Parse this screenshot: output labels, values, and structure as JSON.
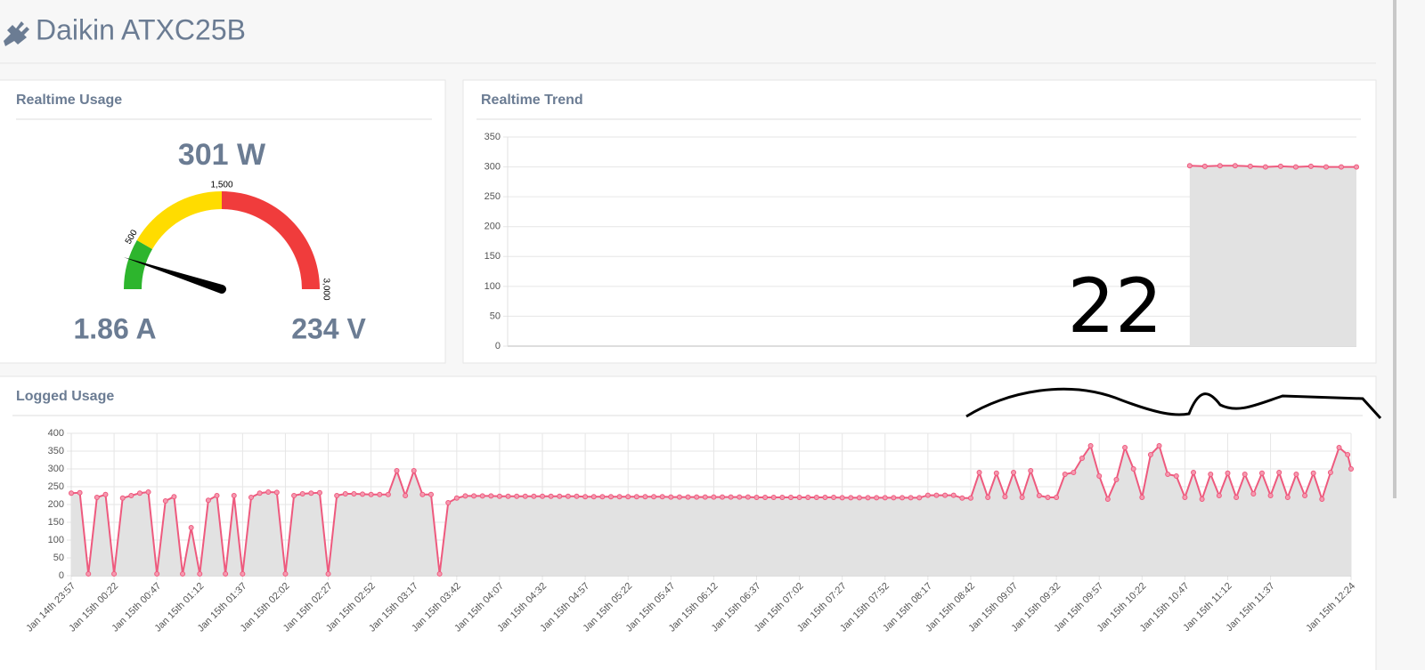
{
  "header": {
    "title": "Daikin ATXC25B"
  },
  "gauge": {
    "title": "Realtime Usage",
    "value": 301,
    "value_label": "301 W",
    "range": [
      0,
      3000
    ],
    "bands": [
      {
        "to": 500,
        "color": "#2db52d"
      },
      {
        "to": 1500,
        "color": "#ffdc00"
      },
      {
        "to": 3000,
        "color": "#f03c3c"
      }
    ],
    "ticks": [
      {
        "value": 500,
        "label": "500"
      },
      {
        "value": 1500,
        "label": "1,500"
      },
      {
        "value": 3000,
        "label": "3,000"
      }
    ],
    "needle_color": "#000000",
    "current": {
      "value": 1.86,
      "label": "1.86 A"
    },
    "voltage": {
      "value": 234,
      "label": "234 V"
    }
  },
  "chart_data": [
    {
      "type": "line",
      "title": "Realtime Trend",
      "annotation": "22",
      "color": "#ee5a7e",
      "area_color": "#e2e2e2",
      "grid": true,
      "values": [
        null,
        null,
        null,
        null,
        null,
        null,
        null,
        null,
        null,
        null,
        null,
        null,
        null,
        null,
        null,
        null,
        null,
        null,
        null,
        null,
        null,
        null,
        null,
        null,
        null,
        null,
        null,
        null,
        null,
        null,
        null,
        null,
        null,
        null,
        null,
        null,
        null,
        null,
        null,
        null,
        null,
        null,
        null,
        null,
        null,
        302,
        301,
        302,
        302,
        301,
        300,
        301,
        300,
        301,
        300,
        300,
        300
      ],
      "ylim": [
        0,
        350
      ],
      "yticks": [
        0,
        50,
        100,
        150,
        200,
        250,
        300,
        350
      ]
    },
    {
      "type": "line",
      "title": "Logged Usage",
      "color": "#ee5a7e",
      "area_color": "#e2e2e2",
      "grid": true,
      "x": [
        "Jan 14th 23:57",
        "Jan 15th 00:02",
        "Jan 15th 00:07",
        "Jan 15th 00:12",
        "Jan 15th 00:17",
        "Jan 15th 00:22",
        "Jan 15th 00:27",
        "Jan 15th 00:32",
        "Jan 15th 00:37",
        "Jan 15th 00:42",
        "Jan 15th 00:47",
        "Jan 15th 00:52",
        "Jan 15th 00:57",
        "Jan 15th 01:02",
        "Jan 15th 01:07",
        "Jan 15th 01:12",
        "Jan 15th 01:17",
        "Jan 15th 01:22",
        "Jan 15th 01:27",
        "Jan 15th 01:32",
        "Jan 15th 01:37",
        "Jan 15th 01:42",
        "Jan 15th 01:47",
        "Jan 15th 01:52",
        "Jan 15th 01:57",
        "Jan 15th 02:02",
        "Jan 15th 02:07",
        "Jan 15th 02:12",
        "Jan 15th 02:17",
        "Jan 15th 02:22",
        "Jan 15th 02:27",
        "Jan 15th 02:32",
        "Jan 15th 02:37",
        "Jan 15th 02:42",
        "Jan 15th 02:47",
        "Jan 15th 02:52",
        "Jan 15th 02:57",
        "Jan 15th 03:02",
        "Jan 15th 03:07",
        "Jan 15th 03:12",
        "Jan 15th 03:17",
        "Jan 15th 03:22",
        "Jan 15th 03:27",
        "Jan 15th 03:32",
        "Jan 15th 03:37",
        "Jan 15th 03:42",
        "Jan 15th 03:47",
        "Jan 15th 03:52",
        "Jan 15th 03:57",
        "Jan 15th 04:02",
        "Jan 15th 04:07",
        "Jan 15th 04:12",
        "Jan 15th 04:17",
        "Jan 15th 04:22",
        "Jan 15th 04:27",
        "Jan 15th 04:32",
        "Jan 15th 04:37",
        "Jan 15th 04:42",
        "Jan 15th 04:47",
        "Jan 15th 04:52",
        "Jan 15th 04:57",
        "Jan 15th 05:02",
        "Jan 15th 05:07",
        "Jan 15th 05:12",
        "Jan 15th 05:17",
        "Jan 15th 05:22",
        "Jan 15th 05:27",
        "Jan 15th 05:32",
        "Jan 15th 05:37",
        "Jan 15th 05:42",
        "Jan 15th 05:47",
        "Jan 15th 05:52",
        "Jan 15th 05:57",
        "Jan 15th 06:02",
        "Jan 15th 06:07",
        "Jan 15th 06:12",
        "Jan 15th 06:17",
        "Jan 15th 06:22",
        "Jan 15th 06:27",
        "Jan 15th 06:32",
        "Jan 15th 06:37",
        "Jan 15th 06:42",
        "Jan 15th 06:47",
        "Jan 15th 06:52",
        "Jan 15th 06:57",
        "Jan 15th 07:02",
        "Jan 15th 07:07",
        "Jan 15th 07:12",
        "Jan 15th 07:17",
        "Jan 15th 07:22",
        "Jan 15th 07:27",
        "Jan 15th 07:32",
        "Jan 15th 07:37",
        "Jan 15th 07:42",
        "Jan 15th 07:47",
        "Jan 15th 07:52",
        "Jan 15th 07:57",
        "Jan 15th 08:02",
        "Jan 15th 08:07",
        "Jan 15th 08:12",
        "Jan 15th 08:17",
        "Jan 15th 08:22",
        "Jan 15th 08:27",
        "Jan 15th 08:32",
        "Jan 15th 08:37",
        "Jan 15th 08:42",
        "Jan 15th 08:47",
        "Jan 15th 08:52",
        "Jan 15th 08:57",
        "Jan 15th 09:02",
        "Jan 15th 09:07",
        "Jan 15th 09:12",
        "Jan 15th 09:17",
        "Jan 15th 09:22",
        "Jan 15th 09:27",
        "Jan 15th 09:32",
        "Jan 15th 09:37",
        "Jan 15th 09:42",
        "Jan 15th 09:47",
        "Jan 15th 09:52",
        "Jan 15th 09:57",
        "Jan 15th 10:02",
        "Jan 15th 10:07",
        "Jan 15th 10:12",
        "Jan 15th 10:17",
        "Jan 15th 10:22",
        "Jan 15th 10:27",
        "Jan 15th 10:32",
        "Jan 15th 10:37",
        "Jan 15th 10:42",
        "Jan 15th 10:47",
        "Jan 15th 10:52",
        "Jan 15th 10:57",
        "Jan 15th 11:02",
        "Jan 15th 11:07",
        "Jan 15th 11:12",
        "Jan 15th 11:17",
        "Jan 15th 11:22",
        "Jan 15th 11:27",
        "Jan 15th 11:32",
        "Jan 15th 11:37",
        "Jan 15th 11:42",
        "Jan 15th 11:47",
        "Jan 15th 11:52",
        "Jan 15th 11:57",
        "Jan 15th 12:02",
        "Jan 15th 12:07",
        "Jan 15th 12:12",
        "Jan 15th 12:17",
        "Jan 15th 12:22",
        "Jan 15th 12:24"
      ],
      "values": [
        232,
        233,
        5,
        220,
        228,
        5,
        218,
        225,
        232,
        235,
        5,
        210,
        222,
        5,
        135,
        5,
        212,
        225,
        5,
        225,
        5,
        220,
        232,
        235,
        234,
        5,
        225,
        230,
        232,
        233,
        5,
        225,
        230,
        230,
        229,
        228,
        228,
        228,
        295,
        225,
        295,
        228,
        228,
        5,
        205,
        218,
        224,
        224,
        224,
        224,
        223,
        223,
        223,
        223,
        223,
        223,
        223,
        223,
        223,
        223,
        222,
        222,
        222,
        222,
        222,
        222,
        222,
        222,
        222,
        222,
        221,
        221,
        221,
        221,
        221,
        221,
        221,
        221,
        221,
        221,
        220,
        220,
        220,
        220,
        220,
        220,
        220,
        220,
        220,
        220,
        219,
        219,
        219,
        219,
        219,
        219,
        219,
        219,
        219,
        219,
        226,
        226,
        226,
        226,
        218,
        218,
        290,
        220,
        288,
        222,
        290,
        220,
        295,
        225,
        220,
        220,
        285,
        290,
        330,
        365,
        280,
        215,
        270,
        360,
        300,
        220,
        340,
        365,
        285,
        280,
        220,
        290,
        215,
        285,
        225,
        288,
        220,
        285,
        230,
        288,
        225,
        290,
        220,
        285,
        225,
        288,
        215,
        290,
        360,
        340,
        300
      ],
      "xlim": [
        "Jan 14th 23:57",
        "Jan 15th 12:24"
      ],
      "xticks": [
        "Jan 14th 23:57",
        "Jan 15th 00:22",
        "Jan 15th 00:47",
        "Jan 15th 01:12",
        "Jan 15th 01:37",
        "Jan 15th 02:02",
        "Jan 15th 02:27",
        "Jan 15th 02:52",
        "Jan 15th 03:17",
        "Jan 15th 03:42",
        "Jan 15th 04:07",
        "Jan 15th 04:32",
        "Jan 15th 04:57",
        "Jan 15th 05:22",
        "Jan 15th 05:47",
        "Jan 15th 06:12",
        "Jan 15th 06:37",
        "Jan 15th 07:02",
        "Jan 15th 07:27",
        "Jan 15th 07:52",
        "Jan 15th 08:17",
        "Jan 15th 08:42",
        "Jan 15th 09:07",
        "Jan 15th 09:32",
        "Jan 15th 09:57",
        "Jan 15th 10:22",
        "Jan 15th 10:47",
        "Jan 15th 11:12",
        "Jan 15th 11:37",
        "Jan 15th 12:24"
      ],
      "ylim": [
        0,
        400
      ],
      "yticks": [
        0,
        50,
        100,
        150,
        200,
        250,
        300,
        350,
        400
      ]
    }
  ]
}
